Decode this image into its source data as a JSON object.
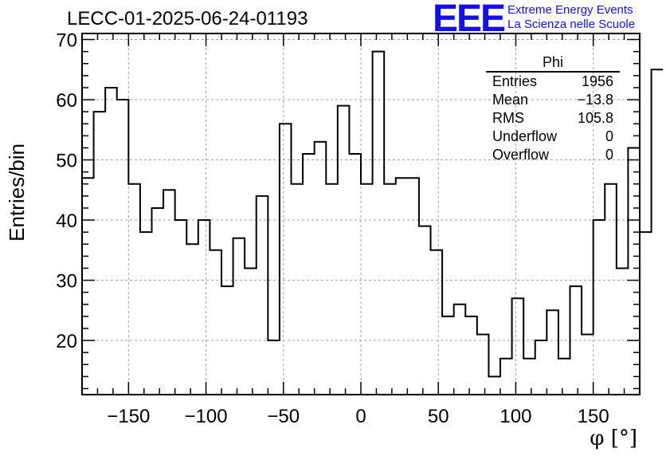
{
  "title": "LECC-01-2025-06-24-01193",
  "logo": {
    "mark": "EEE",
    "line1": "Extreme Energy Events",
    "line2": "La Scienza nelle Scuole",
    "color": "#1010ee"
  },
  "statbox": {
    "name": "Phi",
    "rows": [
      {
        "label": "Entries",
        "value": "1956"
      },
      {
        "label": "Mean",
        "value": "−13.8"
      },
      {
        "label": "RMS",
        "value": "105.8"
      },
      {
        "label": "Underflow",
        "value": "0"
      },
      {
        "label": "Overflow",
        "value": "0"
      }
    ]
  },
  "chart_data": {
    "type": "histogram",
    "xlabel": "φ [°]",
    "ylabel": "Entries/bin",
    "xlim": [
      -180,
      180
    ],
    "ylim": [
      11,
      71
    ],
    "bin_width": 7.5,
    "x_ticks": [
      -150,
      -100,
      -50,
      0,
      50,
      100,
      150
    ],
    "x_tick_labels": [
      "−150",
      "−100",
      "−50",
      "0",
      "50",
      "100",
      "150"
    ],
    "y_ticks": [
      20,
      30,
      40,
      50,
      60,
      70
    ],
    "grid": true,
    "line_color": "#000000",
    "values": [
      47,
      58,
      62,
      60,
      46,
      38,
      42,
      45,
      40,
      36,
      40,
      35,
      29,
      37,
      32,
      44,
      20,
      56,
      46,
      51,
      53,
      46,
      59,
      51,
      46,
      68,
      46,
      47,
      47,
      39,
      35,
      24,
      26,
      24,
      21,
      14,
      17,
      27,
      17,
      20,
      25,
      17,
      29,
      21,
      40,
      46,
      32,
      52,
      38,
      65
    ]
  }
}
